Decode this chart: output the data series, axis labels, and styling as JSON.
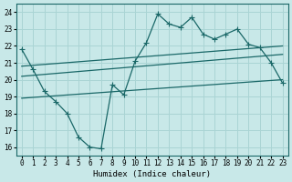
{
  "xlabel": "Humidex (Indice chaleur)",
  "bg_color": "#c8e8e8",
  "line_color": "#1a6868",
  "grid_color": "#aad4d4",
  "ylim": [
    15.5,
    24.5
  ],
  "xlim": [
    -0.5,
    23.5
  ],
  "yticks": [
    16,
    17,
    18,
    19,
    20,
    21,
    22,
    23,
    24
  ],
  "xticks": [
    0,
    1,
    2,
    3,
    4,
    5,
    6,
    7,
    8,
    9,
    10,
    11,
    12,
    13,
    14,
    15,
    16,
    17,
    18,
    19,
    20,
    21,
    22,
    23
  ],
  "main_line_x": [
    0,
    1,
    2,
    3,
    4,
    5,
    6,
    7,
    8,
    9,
    10,
    11,
    12,
    13,
    14,
    15,
    16,
    17,
    18,
    19,
    20,
    21,
    22,
    23
  ],
  "main_line_y": [
    21.8,
    20.6,
    19.3,
    18.7,
    18.0,
    16.6,
    16.0,
    15.9,
    19.7,
    19.1,
    21.1,
    22.2,
    23.9,
    23.3,
    23.1,
    23.7,
    22.7,
    22.4,
    22.7,
    23.0,
    22.1,
    21.9,
    21.0,
    19.8
  ],
  "upper_line_x": [
    0,
    23
  ],
  "upper_line_y": [
    20.8,
    22.0
  ],
  "middle_line_x": [
    0,
    23
  ],
  "middle_line_y": [
    20.2,
    21.5
  ],
  "lower_line_x": [
    0,
    23
  ],
  "lower_line_y": [
    18.9,
    20.0
  ]
}
